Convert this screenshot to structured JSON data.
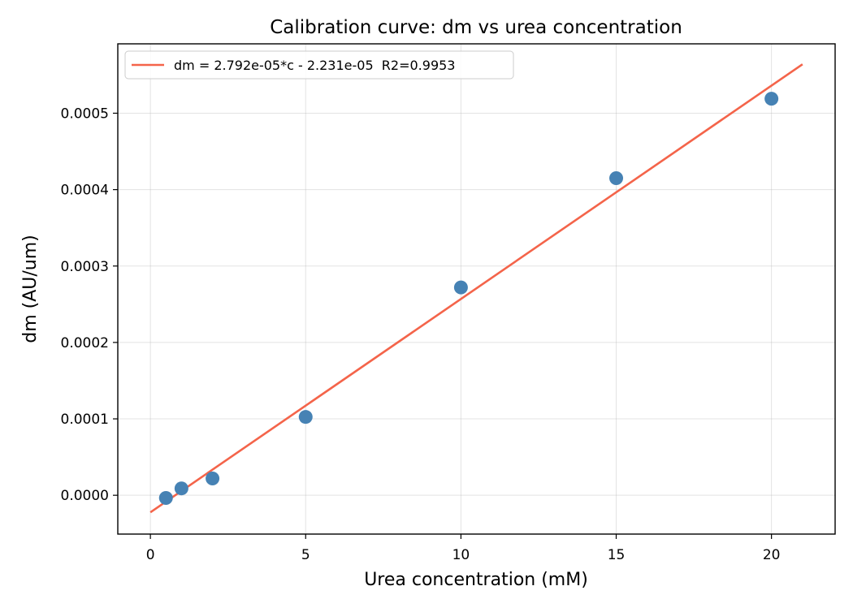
{
  "chart_data": {
    "type": "scatter",
    "title": "Calibration curve: dm vs urea concentration",
    "xlabel": "Urea concentration (mM)",
    "ylabel": "dm (AU/um)",
    "xlim": [
      -1.05,
      22.05
    ],
    "ylim": [
      -5.08e-05,
      0.0005908
    ],
    "xticks": [
      {
        "value": 0,
        "label": "0"
      },
      {
        "value": 5,
        "label": "5"
      },
      {
        "value": 10,
        "label": "10"
      },
      {
        "value": 15,
        "label": "15"
      },
      {
        "value": 20,
        "label": "20"
      }
    ],
    "yticks": [
      {
        "value": 0.0,
        "label": "0.0000"
      },
      {
        "value": 0.0001,
        "label": "0.0001"
      },
      {
        "value": 0.0002,
        "label": "0.0002"
      },
      {
        "value": 0.0003,
        "label": "0.0003"
      },
      {
        "value": 0.0004,
        "label": "0.0004"
      },
      {
        "value": 0.0005,
        "label": "0.0005"
      }
    ],
    "grid": true,
    "legend_position": "top-left",
    "series": [
      {
        "kind": "points",
        "color": "#4682b4",
        "points": [
          {
            "x": 0.5,
            "y": -3.5e-06
          },
          {
            "x": 1,
            "y": 9e-06
          },
          {
            "x": 2,
            "y": 2.2e-05
          },
          {
            "x": 5,
            "y": 0.0001025
          },
          {
            "x": 10,
            "y": 0.000272
          },
          {
            "x": 15,
            "y": 0.000415
          },
          {
            "x": 20,
            "y": 0.000519
          }
        ]
      },
      {
        "kind": "fit-line",
        "name": "dm = 2.792e-05*c - 2.231e-05  R2=0.9953",
        "color": "#f4644a",
        "slope": 2.792e-05,
        "intercept": -2.231e-05,
        "x_range": [
          0,
          21
        ]
      }
    ]
  }
}
